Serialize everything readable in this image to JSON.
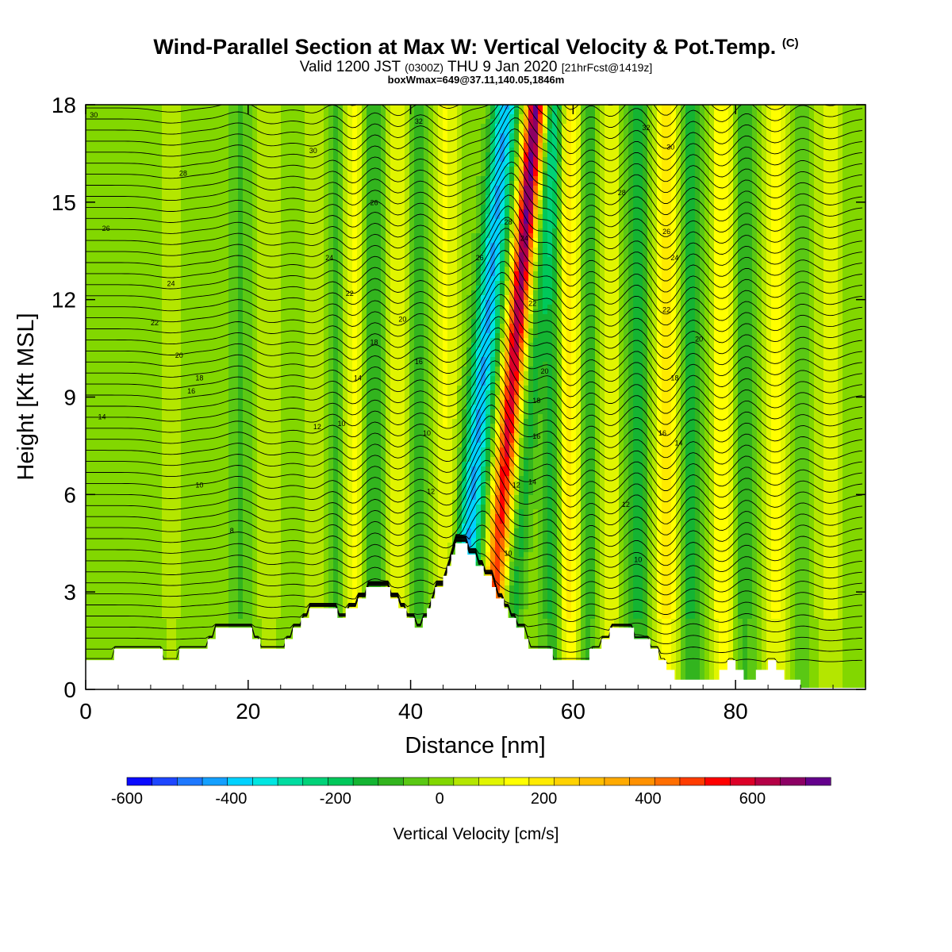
{
  "title": {
    "main": "Wind-Parallel Section at Max W: Vertical Velocity & Pot.Temp.",
    "copyright": "(C)",
    "valid_prefix": "Valid 1200 JST",
    "utc": "(0300Z)",
    "valid_date": "THU 9 Jan 2020",
    "forecast": "[21hrFcst@1419z]",
    "boxwmax": "boxWmax=649@37.11,140.05,1846m"
  },
  "chart_data": {
    "type": "heatmap",
    "xlabel": "Distance [nm]",
    "ylabel": "Height [Kft MSL]",
    "xlim": [
      0,
      96
    ],
    "ylim": [
      0,
      18
    ],
    "x_ticks": [
      0,
      20,
      40,
      60,
      80
    ],
    "y_ticks": [
      0,
      3,
      6,
      9,
      12,
      15,
      18
    ],
    "fill_variable": "Vertical Velocity [cm/s]",
    "colorbar": {
      "label": "Vertical Velocity [cm/s]",
      "tick_labels": [
        "-600",
        "-400",
        "-200",
        "0",
        "200",
        "400",
        "600"
      ],
      "tick_values": [
        -600,
        -400,
        -200,
        0,
        200,
        400,
        600
      ],
      "range": [
        -600,
        750
      ],
      "bin_width": 50,
      "colors": [
        "#0a0aff",
        "#1e46ff",
        "#1e78ff",
        "#14a0ff",
        "#00d2ff",
        "#00e6e1",
        "#00dca0",
        "#00d278",
        "#00c85a",
        "#14b432",
        "#32b41e",
        "#5ac814",
        "#82d700",
        "#b4e600",
        "#e1f500",
        "#ffff00",
        "#ffeb00",
        "#ffd200",
        "#ffbe00",
        "#ffaa00",
        "#ff9100",
        "#ff6e00",
        "#ff3c00",
        "#ff0000",
        "#dc0028",
        "#b40046",
        "#8c0064",
        "#64008c"
      ]
    },
    "contour_variable": "Potential Temperature",
    "contour_labels": [
      "30",
      "28",
      "26",
      "24",
      "22",
      "20",
      "18",
      "16",
      "14",
      "10",
      "8",
      "32",
      "30",
      "26",
      "24",
      "22",
      "20",
      "18",
      "16",
      "14",
      "12",
      "10",
      "12",
      "10",
      "32",
      "30",
      "28",
      "26",
      "24",
      "22",
      "20",
      "18",
      "16",
      "14",
      "12",
      "10",
      "28",
      "26",
      "24",
      "22",
      "20",
      "18",
      "16",
      "14",
      "12",
      "10"
    ],
    "terrain_kft": [
      [
        0,
        0.9
      ],
      [
        3.5,
        0.9
      ],
      [
        3.5,
        1.25
      ],
      [
        9.5,
        1.25
      ],
      [
        9.5,
        0.9
      ],
      [
        11.5,
        0.9
      ],
      [
        11.5,
        1.25
      ],
      [
        15,
        1.25
      ],
      [
        15,
        1.55
      ],
      [
        16,
        1.55
      ],
      [
        16,
        1.9
      ],
      [
        20.5,
        1.9
      ],
      [
        20.5,
        1.55
      ],
      [
        21.5,
        1.55
      ],
      [
        21.5,
        1.25
      ],
      [
        24.5,
        1.25
      ],
      [
        24.5,
        1.55
      ],
      [
        25.5,
        1.55
      ],
      [
        25.5,
        1.9
      ],
      [
        26.5,
        1.9
      ],
      [
        26.5,
        2.2
      ],
      [
        27.5,
        2.2
      ],
      [
        27.5,
        2.5
      ],
      [
        31,
        2.5
      ],
      [
        31,
        2.2
      ],
      [
        32,
        2.2
      ],
      [
        32,
        2.5
      ],
      [
        33.5,
        2.5
      ],
      [
        33.5,
        2.8
      ],
      [
        34.5,
        2.8
      ],
      [
        34.5,
        3.15
      ],
      [
        37.5,
        3.15
      ],
      [
        37.5,
        2.8
      ],
      [
        38.5,
        2.8
      ],
      [
        38.5,
        2.5
      ],
      [
        39.5,
        2.5
      ],
      [
        39.5,
        2.2
      ],
      [
        40.5,
        2.2
      ],
      [
        40.5,
        1.9
      ],
      [
        41.5,
        1.9
      ],
      [
        41.5,
        2.2
      ],
      [
        42,
        2.2
      ],
      [
        42,
        2.5
      ],
      [
        42.5,
        2.5
      ],
      [
        42.5,
        2.8
      ],
      [
        43,
        2.8
      ],
      [
        43,
        3.15
      ],
      [
        44,
        3.15
      ],
      [
        44,
        3.5
      ],
      [
        44.5,
        3.5
      ],
      [
        44.5,
        3.8
      ],
      [
        45,
        3.8
      ],
      [
        45,
        4.15
      ],
      [
        45.5,
        4.15
      ],
      [
        45.5,
        4.5
      ],
      [
        47,
        4.5
      ],
      [
        47,
        4.15
      ],
      [
        48,
        4.15
      ],
      [
        48,
        3.8
      ],
      [
        49,
        3.8
      ],
      [
        49,
        3.5
      ],
      [
        50,
        3.5
      ],
      [
        50,
        3.15
      ],
      [
        50.5,
        3.15
      ],
      [
        50.5,
        2.8
      ],
      [
        51.5,
        2.8
      ],
      [
        51.5,
        2.5
      ],
      [
        52,
        2.5
      ],
      [
        52,
        2.2
      ],
      [
        53,
        2.2
      ],
      [
        53,
        1.9
      ],
      [
        54,
        1.9
      ],
      [
        54,
        1.55
      ],
      [
        54.5,
        1.55
      ],
      [
        54.5,
        1.25
      ],
      [
        57.5,
        1.25
      ],
      [
        57.5,
        0.9
      ],
      [
        62,
        0.9
      ],
      [
        62,
        1.25
      ],
      [
        63.5,
        1.25
      ],
      [
        63.5,
        1.55
      ],
      [
        64.5,
        1.55
      ],
      [
        64.5,
        1.9
      ],
      [
        67.5,
        1.9
      ],
      [
        67.5,
        1.55
      ],
      [
        69.5,
        1.55
      ],
      [
        69.5,
        1.25
      ],
      [
        70.5,
        1.25
      ],
      [
        70.5,
        0.9
      ],
      [
        71.5,
        0.9
      ],
      [
        71.5,
        0.6
      ],
      [
        72.5,
        0.6
      ],
      [
        72.5,
        0.3
      ],
      [
        78,
        0.3
      ],
      [
        78,
        0.6
      ],
      [
        79,
        0.6
      ],
      [
        79,
        0.9
      ],
      [
        80,
        0.9
      ],
      [
        80,
        0.6
      ],
      [
        81,
        0.6
      ],
      [
        81,
        0.3
      ],
      [
        82.5,
        0.3
      ],
      [
        82.5,
        0.6
      ],
      [
        84,
        0.6
      ],
      [
        84,
        0.9
      ],
      [
        85,
        0.9
      ],
      [
        85,
        0.6
      ],
      [
        86,
        0.6
      ],
      [
        86,
        0.3
      ],
      [
        88,
        0.3
      ],
      [
        88,
        0.05
      ],
      [
        96,
        0.05
      ]
    ]
  }
}
